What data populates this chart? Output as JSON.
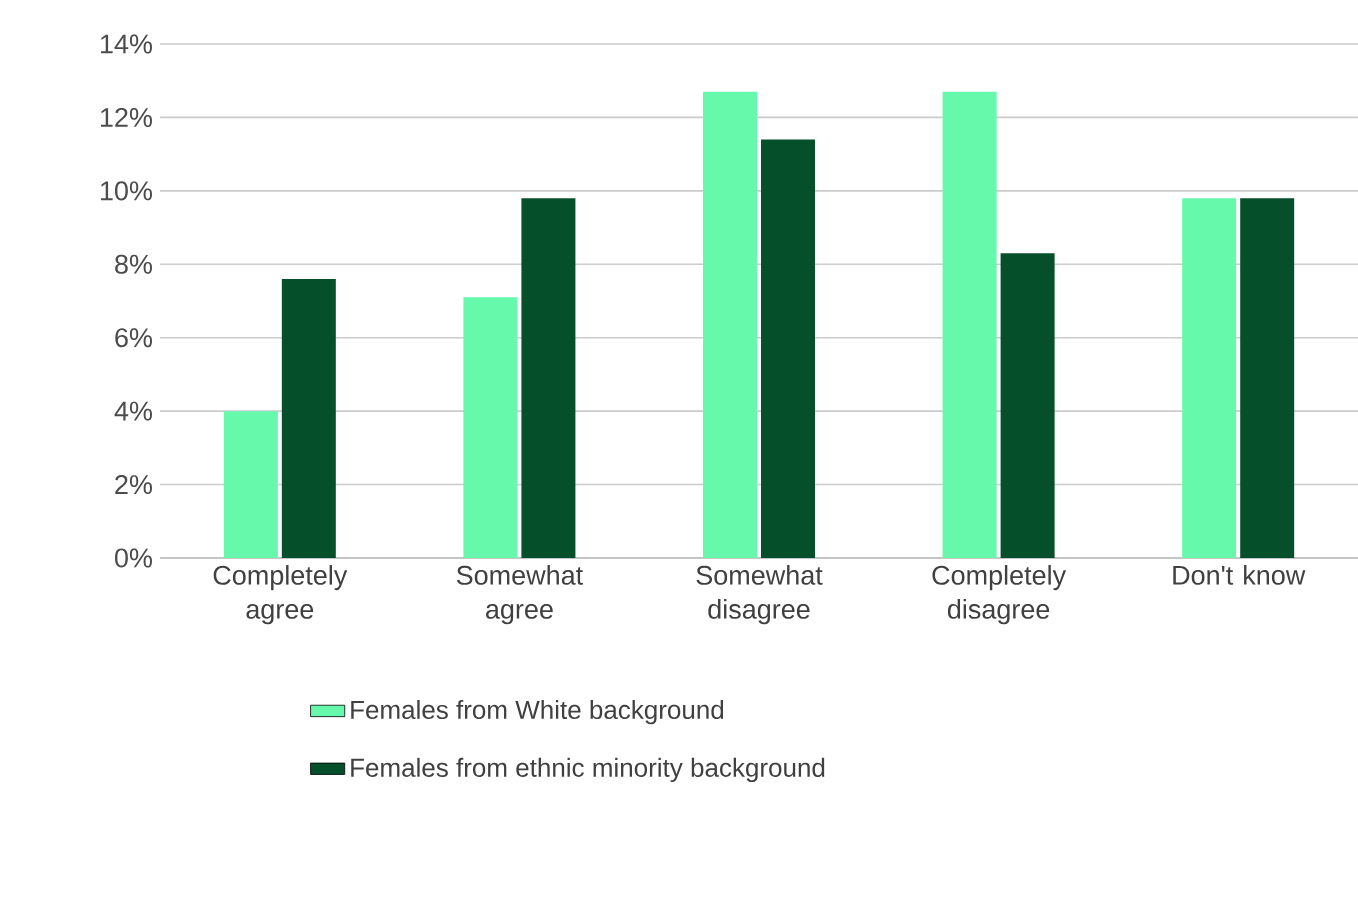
{
  "chart_data": {
    "type": "bar",
    "categories": [
      "Completely agree",
      "Somewhat agree",
      "Somewhat disagree",
      "Completely disagree",
      "Don't know"
    ],
    "series": [
      {
        "name": "Females from White background",
        "color": "#66f8ab",
        "values": [
          4.0,
          7.1,
          12.7,
          12.7,
          9.8
        ]
      },
      {
        "name": "Females from ethnic minority background",
        "color": "#054f2b",
        "values": [
          7.6,
          9.8,
          11.4,
          8.3,
          9.8
        ]
      }
    ],
    "ylim": [
      0,
      14
    ],
    "yticks": [
      {
        "value": 0,
        "label": "0%"
      },
      {
        "value": 2,
        "label": "2%"
      },
      {
        "value": 4,
        "label": "4%"
      },
      {
        "value": 6,
        "label": "6%"
      },
      {
        "value": 8,
        "label": "8%"
      },
      {
        "value": 10,
        "label": "10%"
      },
      {
        "value": 12,
        "label": "12%"
      },
      {
        "value": 14,
        "label": "14%"
      }
    ],
    "grid": "y",
    "legend": "bottom"
  }
}
